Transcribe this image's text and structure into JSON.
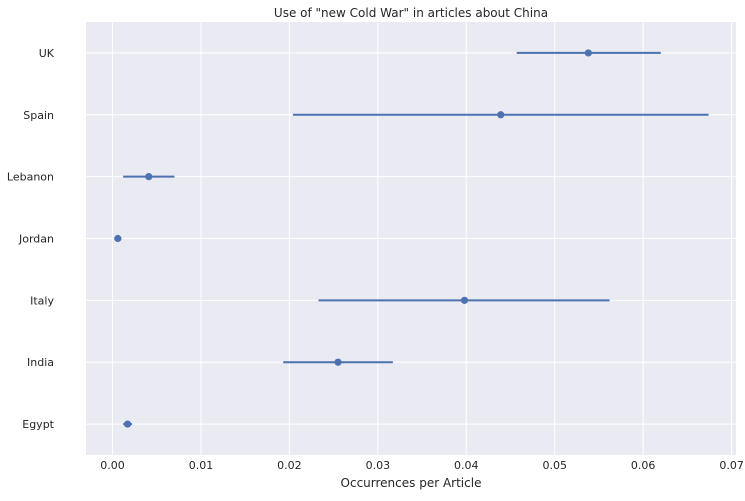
{
  "chart_data": {
    "type": "scatter",
    "title": "Use of \"new Cold War\" in articles about China",
    "xlabel": "Occurrences per Article",
    "ylabel": "",
    "xlim": [
      -0.003,
      0.0705
    ],
    "xticks": [
      0.0,
      0.01,
      0.02,
      0.03,
      0.04,
      0.05,
      0.06,
      0.07
    ],
    "xtick_labels": [
      "0.00",
      "0.01",
      "0.02",
      "0.03",
      "0.04",
      "0.05",
      "0.06",
      "0.07"
    ],
    "categories": [
      "UK",
      "Spain",
      "Lebanon",
      "Jordan",
      "Italy",
      "India",
      "Egypt"
    ],
    "series": [
      {
        "values": [
          0.0538,
          0.0439,
          0.0041,
          0.0006,
          0.0398,
          0.0255,
          0.0017
        ],
        "ci_low": [
          0.0457,
          0.0204,
          0.0012,
          0.0002,
          0.0233,
          0.0193,
          0.0012
        ],
        "ci_high": [
          0.062,
          0.0674,
          0.007,
          0.001,
          0.0562,
          0.0317,
          0.0022
        ]
      }
    ],
    "grid": true,
    "colors": {
      "background": "#eaeaf2",
      "grid": "#ffffff",
      "marker": "#4c72b0",
      "text": "#262626"
    }
  }
}
